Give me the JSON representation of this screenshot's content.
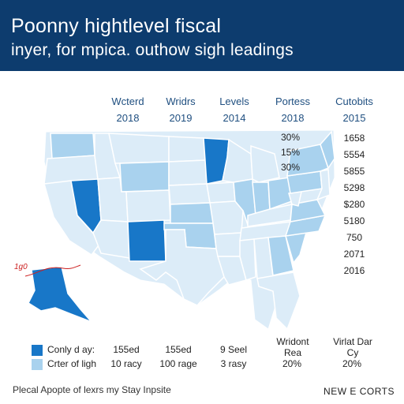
{
  "header": {
    "line1": "Poonny hightlevel fiscal",
    "line2": "inyer, for mpica. outhow sigh leadings"
  },
  "columns": [
    {
      "name": "Wcterd",
      "year": "2018"
    },
    {
      "name": "Wridrs",
      "year": "2019"
    },
    {
      "name": "Levels",
      "year": "2014"
    },
    {
      "name": "Portess",
      "year": "2018"
    },
    {
      "name": "Cutobits",
      "year": "2015"
    }
  ],
  "values_left": [
    "30%",
    "15%",
    "30%"
  ],
  "values_right": [
    "1658",
    "5554",
    "5855",
    "5298",
    "$280",
    "5180",
    "750",
    "2071",
    "2016"
  ],
  "annotation": "1g0",
  "legend": [
    {
      "label": "Conly d ay:",
      "cells": [
        "155ed",
        "155ed",
        "9 Seel"
      ],
      "color": "#1877c8"
    },
    {
      "label": "Crter of ligh",
      "cells": [
        "10 racy",
        "100 rage",
        "3 rasy",
        "20%",
        "20%"
      ],
      "color": "#a9d2ee"
    }
  ],
  "legend_headers": [
    {
      "line1": "Wridont",
      "line2": "Rea"
    },
    {
      "line1": "Virlat Dar",
      "line2": "Cy"
    }
  ],
  "footer": {
    "left": "Plecal Apopte of lexrs my Stay Inpsite",
    "right": "NEW E CORTS"
  },
  "colors": {
    "banner": "#0d3c6e",
    "dark": "#1877c8",
    "mid": "#a9d2ee",
    "light": "#dcecf8",
    "border": "#ffffff"
  }
}
